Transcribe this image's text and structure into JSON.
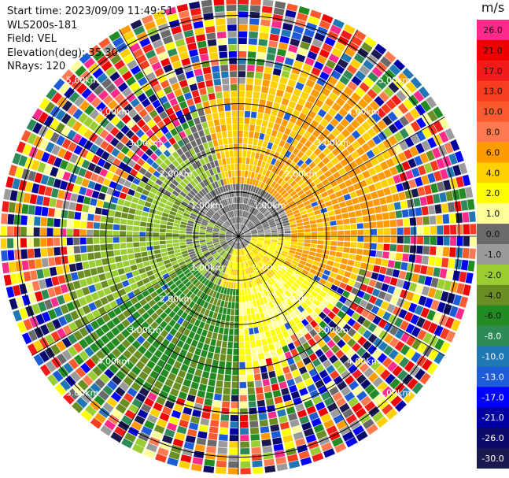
{
  "info": {
    "start_time": "Start time: 2023/09/09 11:49:51",
    "instrument": "WLS200s-181",
    "field": "Field: VEL",
    "elevation": "Elevation(deg): 35.30",
    "nrays": "NRays: 120"
  },
  "colorbar": {
    "unit": "m/s",
    "levels": [
      "26.0",
      "21.0",
      "17.0",
      "13.0",
      "10.0",
      "8.0",
      "6.0",
      "4.0",
      "2.0",
      "1.0",
      "0.0",
      "-1.0",
      "-2.0",
      "-4.0",
      "-6.0",
      "-8.0",
      "-10.0",
      "-13.0",
      "-17.0",
      "-21.0",
      "-26.0",
      "-30.0"
    ],
    "colors": [
      "#ff2a8a",
      "#f00000",
      "#f31a1a",
      "#f83c20",
      "#fa5a2e",
      "#ff7a50",
      "#ff9a00",
      "#ffd000",
      "#ffff00",
      "#ffff9a",
      "#6a6a6a",
      "#9b9b9b",
      "#9acd32",
      "#6b8e23",
      "#228b22",
      "#2e8b57",
      "#1f77b4",
      "#1e5bd6",
      "#0000ff",
      "#0000a0",
      "#0a0a6a",
      "#1a1a50"
    ]
  },
  "chart_data": {
    "type": "ppi",
    "field": "VEL",
    "units": "m/s",
    "range_ring_labels": [
      "1.00km",
      "2.00km",
      "3.00km",
      "4.00km",
      "5.00km"
    ],
    "nrays": 120,
    "elevation_deg": 35.3,
    "max_range_km": 5.4
  }
}
